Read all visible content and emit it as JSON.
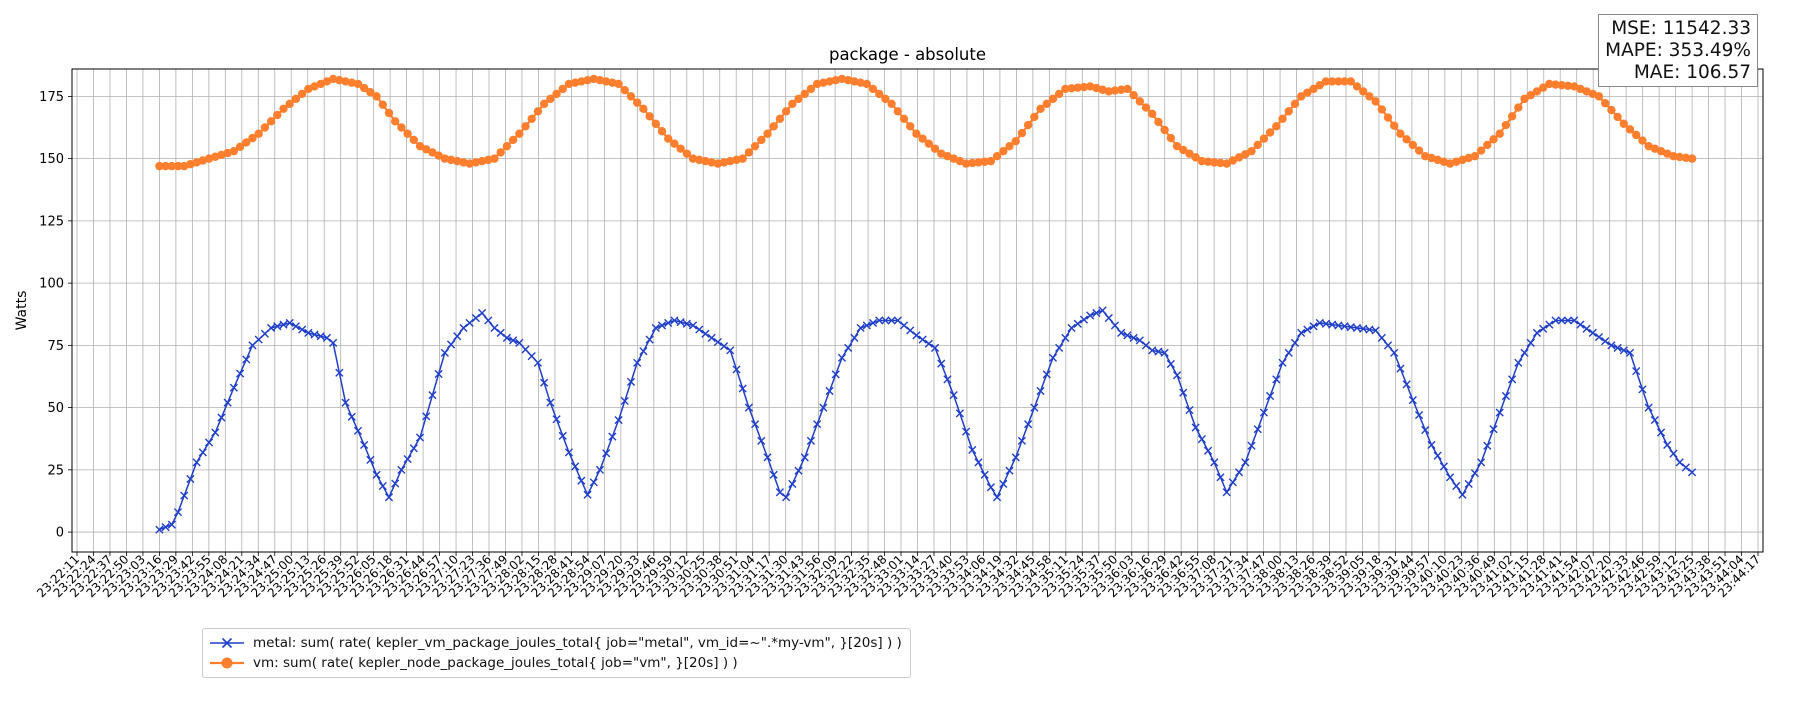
{
  "chart_data": {
    "type": "line",
    "title": "package - absolute",
    "xlabel": "",
    "ylabel": "Watts",
    "ylim": [
      -8,
      186
    ],
    "yticks": [
      0,
      25,
      50,
      75,
      100,
      125,
      150,
      175
    ],
    "grid": true,
    "legend_position": "below-left",
    "x_tick_labels": [
      "23:22:11",
      "23:22:24",
      "23:22:37",
      "23:22:50",
      "23:23:03",
      "23:23:16",
      "23:23:29",
      "23:23:42",
      "23:23:55",
      "23:24:08",
      "23:24:21",
      "23:24:34",
      "23:24:47",
      "23:25:00",
      "23:25:13",
      "23:25:26",
      "23:25:39",
      "23:25:52",
      "23:26:05",
      "23:26:18",
      "23:26:31",
      "23:26:44",
      "23:26:57",
      "23:27:10",
      "23:27:23",
      "23:27:36",
      "23:27:49",
      "23:28:02",
      "23:28:15",
      "23:28:28",
      "23:28:41",
      "23:28:54",
      "23:29:07",
      "23:29:20",
      "23:29:33",
      "23:29:46",
      "23:29:59",
      "23:30:12",
      "23:30:25",
      "23:30:38",
      "23:30:51",
      "23:31:04",
      "23:31:17",
      "23:31:30",
      "23:31:43",
      "23:31:56",
      "23:32:09",
      "23:32:22",
      "23:32:35",
      "23:32:48",
      "23:33:01",
      "23:33:14",
      "23:33:27",
      "23:33:40",
      "23:33:53",
      "23:34:06",
      "23:34:19",
      "23:34:32",
      "23:34:45",
      "23:34:58",
      "23:35:11",
      "23:35:24",
      "23:35:37",
      "23:35:50",
      "23:36:03",
      "23:36:16",
      "23:36:29",
      "23:36:42",
      "23:36:55",
      "23:37:08",
      "23:37:21",
      "23:37:34",
      "23:37:47",
      "23:38:00",
      "23:38:13",
      "23:38:26",
      "23:38:39",
      "23:38:52",
      "23:39:05",
      "23:39:18",
      "23:39:31",
      "23:39:44",
      "23:39:57",
      "23:40:10",
      "23:40:23",
      "23:40:36",
      "23:40:49",
      "23:41:02",
      "23:41:15",
      "23:41:28",
      "23:41:41",
      "23:41:54",
      "23:42:07",
      "23:42:20",
      "23:42:33",
      "23:42:46",
      "23:42:59",
      "23:43:12",
      "23:43:25",
      "23:43:38",
      "23:43:51",
      "23:44:04",
      "23:44:17"
    ],
    "x_label_start_index": 0,
    "series": [
      {
        "name": "metal: sum( rate( kepler_vm_package_joules_total{ job=\"metal\", vm_id=~\".*my-vm\", }[20s] ) )",
        "color": "#1f3fc8",
        "marker": "x",
        "x_start_index": 5,
        "x_end_index": 98,
        "keyframes": [
          [
            0,
            1
          ],
          [
            2,
            3
          ],
          [
            3,
            8
          ],
          [
            6,
            28
          ],
          [
            9,
            40
          ],
          [
            12,
            58
          ],
          [
            15,
            75
          ],
          [
            18,
            82
          ],
          [
            21,
            84
          ],
          [
            24,
            80
          ],
          [
            27,
            78
          ],
          [
            28,
            76
          ],
          [
            30,
            52
          ],
          [
            33,
            35
          ],
          [
            35,
            23
          ],
          [
            37,
            14
          ],
          [
            39,
            25
          ],
          [
            42,
            38
          ],
          [
            44,
            55
          ],
          [
            46,
            72
          ],
          [
            49,
            82
          ],
          [
            52,
            88
          ],
          [
            54,
            82
          ],
          [
            56,
            78
          ],
          [
            58,
            76
          ],
          [
            61,
            68
          ],
          [
            63,
            52
          ],
          [
            66,
            32
          ],
          [
            69,
            15
          ],
          [
            71,
            25
          ],
          [
            74,
            45
          ],
          [
            77,
            68
          ],
          [
            80,
            82
          ],
          [
            83,
            85
          ],
          [
            86,
            83
          ],
          [
            89,
            78
          ],
          [
            92,
            73
          ],
          [
            95,
            50
          ],
          [
            98,
            30
          ],
          [
            100,
            16
          ],
          [
            101,
            14
          ],
          [
            104,
            30
          ],
          [
            107,
            50
          ],
          [
            110,
            70
          ],
          [
            113,
            82
          ],
          [
            116,
            85
          ],
          [
            119,
            85
          ],
          [
            122,
            79
          ],
          [
            125,
            74
          ],
          [
            128,
            55
          ],
          [
            131,
            33
          ],
          [
            134,
            18
          ],
          [
            135,
            14
          ],
          [
            138,
            30
          ],
          [
            141,
            50
          ],
          [
            144,
            70
          ],
          [
            147,
            82
          ],
          [
            150,
            87
          ],
          [
            152,
            89
          ],
          [
            155,
            80
          ],
          [
            158,
            77
          ],
          [
            160,
            73
          ],
          [
            162,
            72
          ],
          [
            164,
            63
          ],
          [
            167,
            42
          ],
          [
            170,
            28
          ],
          [
            172,
            16
          ],
          [
            175,
            28
          ],
          [
            178,
            48
          ],
          [
            181,
            68
          ],
          [
            184,
            80
          ],
          [
            187,
            84
          ],
          [
            190,
            83
          ],
          [
            193,
            82
          ],
          [
            196,
            81
          ],
          [
            199,
            72
          ],
          [
            202,
            53
          ],
          [
            205,
            35
          ],
          [
            208,
            22
          ],
          [
            210,
            15
          ],
          [
            213,
            28
          ],
          [
            216,
            48
          ],
          [
            219,
            68
          ],
          [
            222,
            80
          ],
          [
            225,
            85
          ],
          [
            228,
            85
          ],
          [
            231,
            80
          ],
          [
            234,
            75
          ],
          [
            237,
            72
          ],
          [
            240,
            50
          ],
          [
            243,
            35
          ],
          [
            245,
            28
          ],
          [
            247,
            24
          ]
        ]
      },
      {
        "name": "vm: sum( rate( kepler_node_package_joules_total{ job=\"vm\", }[20s] ) )",
        "color": "#ff7f2e",
        "marker": "o",
        "x_start_index": 5,
        "x_end_index": 98,
        "keyframes": [
          [
            0,
            147
          ],
          [
            4,
            147
          ],
          [
            8,
            150
          ],
          [
            12,
            153
          ],
          [
            16,
            160
          ],
          [
            20,
            170
          ],
          [
            24,
            178
          ],
          [
            28,
            182
          ],
          [
            32,
            180
          ],
          [
            35,
            175
          ],
          [
            38,
            165
          ],
          [
            42,
            155
          ],
          [
            46,
            150
          ],
          [
            50,
            148
          ],
          [
            54,
            150
          ],
          [
            58,
            160
          ],
          [
            62,
            172
          ],
          [
            66,
            180
          ],
          [
            70,
            182
          ],
          [
            74,
            180
          ],
          [
            78,
            170
          ],
          [
            82,
            158
          ],
          [
            86,
            150
          ],
          [
            90,
            148
          ],
          [
            94,
            150
          ],
          [
            98,
            160
          ],
          [
            102,
            172
          ],
          [
            106,
            180
          ],
          [
            110,
            182
          ],
          [
            114,
            180
          ],
          [
            118,
            172
          ],
          [
            122,
            160
          ],
          [
            126,
            152
          ],
          [
            130,
            148
          ],
          [
            134,
            149
          ],
          [
            138,
            157
          ],
          [
            142,
            170
          ],
          [
            146,
            178
          ],
          [
            150,
            179
          ],
          [
            153,
            177
          ],
          [
            156,
            178
          ],
          [
            160,
            168
          ],
          [
            164,
            155
          ],
          [
            168,
            149
          ],
          [
            172,
            148
          ],
          [
            176,
            153
          ],
          [
            180,
            163
          ],
          [
            184,
            175
          ],
          [
            188,
            181
          ],
          [
            192,
            181
          ],
          [
            196,
            173
          ],
          [
            200,
            160
          ],
          [
            204,
            151
          ],
          [
            208,
            148
          ],
          [
            212,
            151
          ],
          [
            216,
            160
          ],
          [
            220,
            174
          ],
          [
            224,
            180
          ],
          [
            228,
            179
          ],
          [
            232,
            175
          ],
          [
            236,
            164
          ],
          [
            240,
            155
          ],
          [
            244,
            151
          ],
          [
            247,
            150
          ]
        ]
      }
    ]
  },
  "stats": {
    "mse": "MSE: 11542.33",
    "mape": "MAPE: 353.49%",
    "mae": "MAE: 106.57"
  }
}
